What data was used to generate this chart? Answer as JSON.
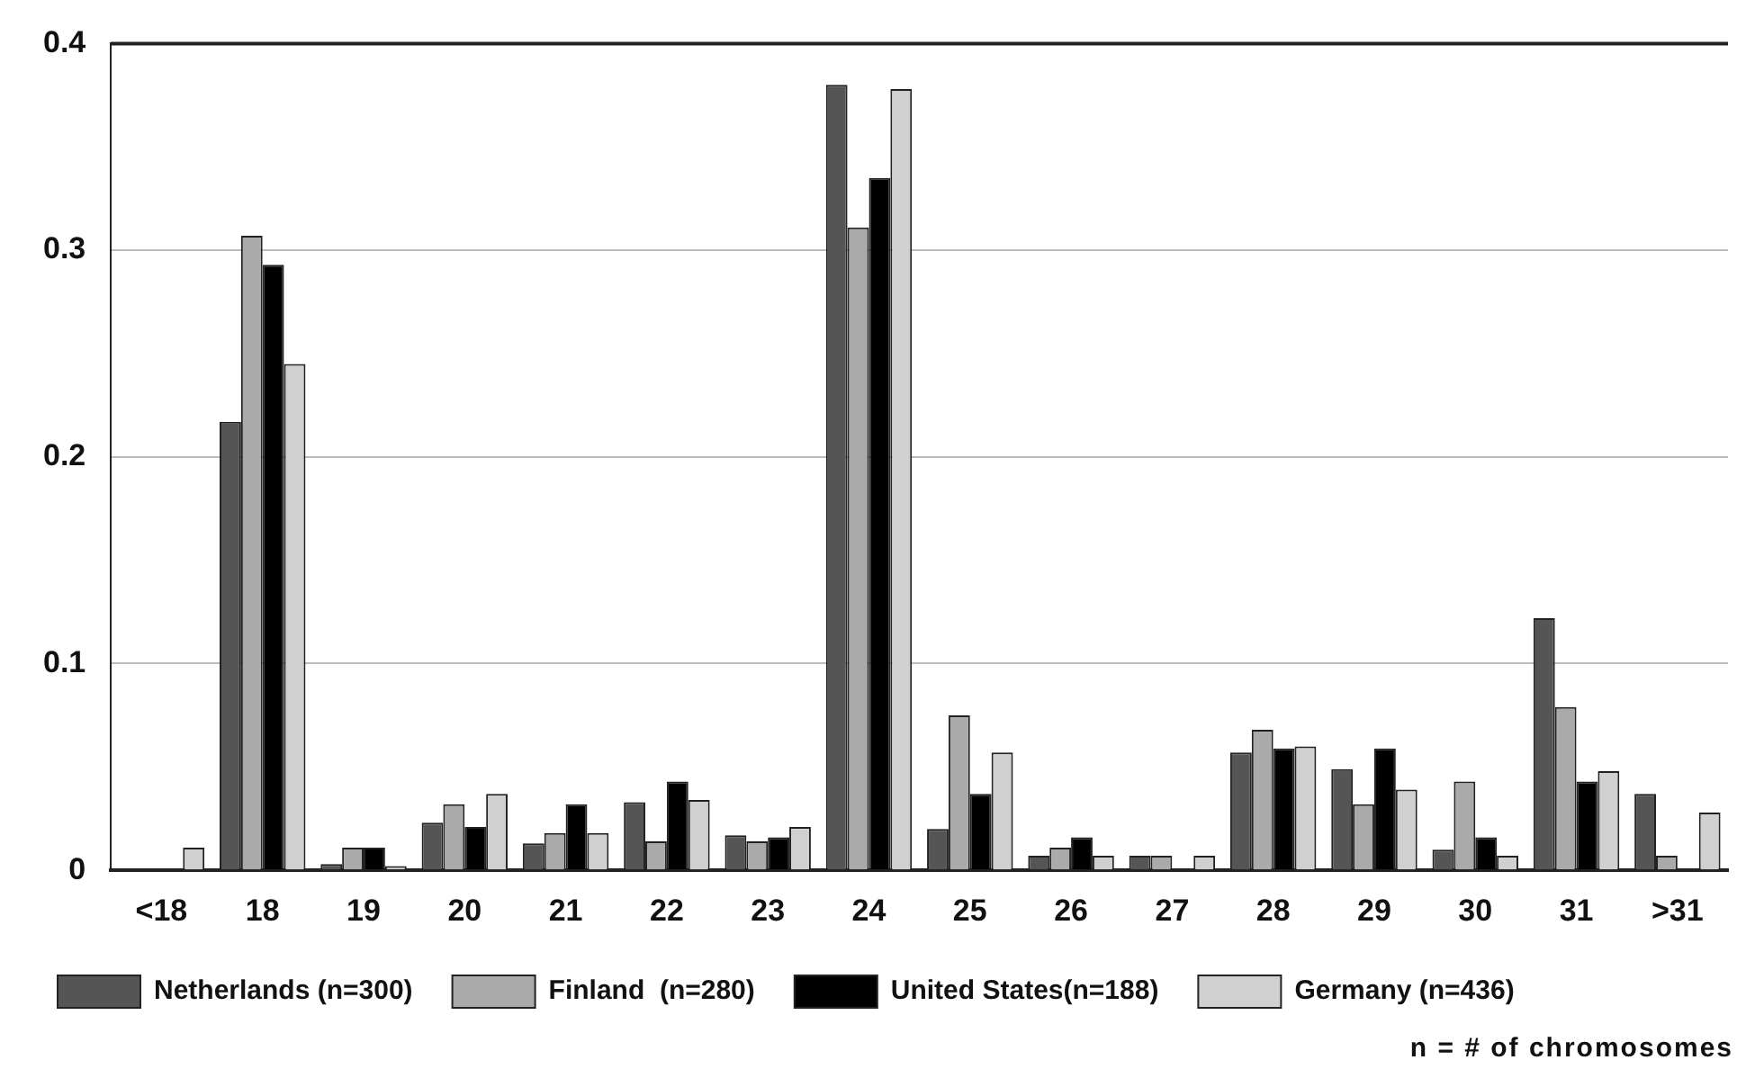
{
  "chart_data": {
    "type": "bar",
    "categories": [
      "<18",
      "18",
      "19",
      "20",
      "21",
      "22",
      "23",
      "24",
      "25",
      "26",
      "27",
      "28",
      "29",
      "30",
      "31",
      ">31"
    ],
    "series": [
      {
        "name": "Netherlands (n=300)",
        "color": "#555555",
        "values": [
          0,
          0.217,
          0.003,
          0.023,
          0.013,
          0.033,
          0.017,
          0.38,
          0.02,
          0.007,
          0.007,
          0.057,
          0.049,
          0.01,
          0.122,
          0.037
        ]
      },
      {
        "name": "Finland  (n=280)",
        "color": "#aaaaaa",
        "values": [
          0,
          0.307,
          0.011,
          0.032,
          0.018,
          0.014,
          0.014,
          0.311,
          0.075,
          0.011,
          0.007,
          0.068,
          0.032,
          0.043,
          0.079,
          0.007
        ]
      },
      {
        "name": "United States(n=188)",
        "color": "#000000",
        "values": [
          0,
          0.293,
          0.011,
          0.021,
          0.032,
          0.043,
          0.016,
          0.335,
          0.037,
          0.016,
          0,
          0.059,
          0.059,
          0.016,
          0.043,
          0
        ]
      },
      {
        "name": "Germany (n=436)",
        "color": "#d0d0d0",
        "values": [
          0.011,
          0.245,
          0.002,
          0.037,
          0.018,
          0.034,
          0.021,
          0.378,
          0.057,
          0.007,
          0.007,
          0.06,
          0.039,
          0.007,
          0.048,
          0.028
        ]
      }
    ],
    "ylim": [
      0,
      0.4
    ],
    "yticks": [
      0,
      0.1,
      0.2,
      0.3,
      0.4
    ],
    "grid": "y",
    "legend": "bottom",
    "annotations": [
      "n = # of chromosomes"
    ]
  }
}
